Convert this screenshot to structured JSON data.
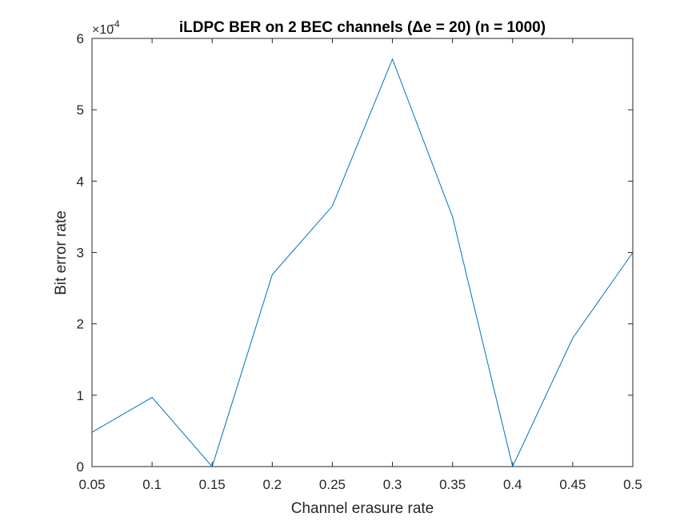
{
  "chart_data": {
    "type": "line",
    "title": "iLDPC BER on 2 BEC channels (Δe = 20) (n = 1000)",
    "xlabel": "Channel erasure rate",
    "ylabel": "Bit error rate",
    "xlim": [
      0.05,
      0.5
    ],
    "ylim": [
      0,
      6
    ],
    "y_multiplier_base": "×10",
    "y_multiplier_exponent": "-4",
    "x_ticks": [
      "0.05",
      "0.1",
      "0.15",
      "0.2",
      "0.25",
      "0.3",
      "0.35",
      "0.4",
      "0.45",
      "0.5"
    ],
    "y_ticks": [
      "0",
      "1",
      "2",
      "3",
      "4",
      "5",
      "6"
    ],
    "grid": false,
    "line_color": "#0072bd",
    "series": [
      {
        "x": [
          0.05,
          0.1,
          0.15,
          0.2,
          0.25,
          0.3,
          0.35,
          0.4,
          0.45,
          0.5
        ],
        "values": [
          0.48,
          0.97,
          0.0,
          2.69,
          3.65,
          5.71,
          3.5,
          0.0,
          1.8,
          3.0
        ]
      }
    ]
  }
}
